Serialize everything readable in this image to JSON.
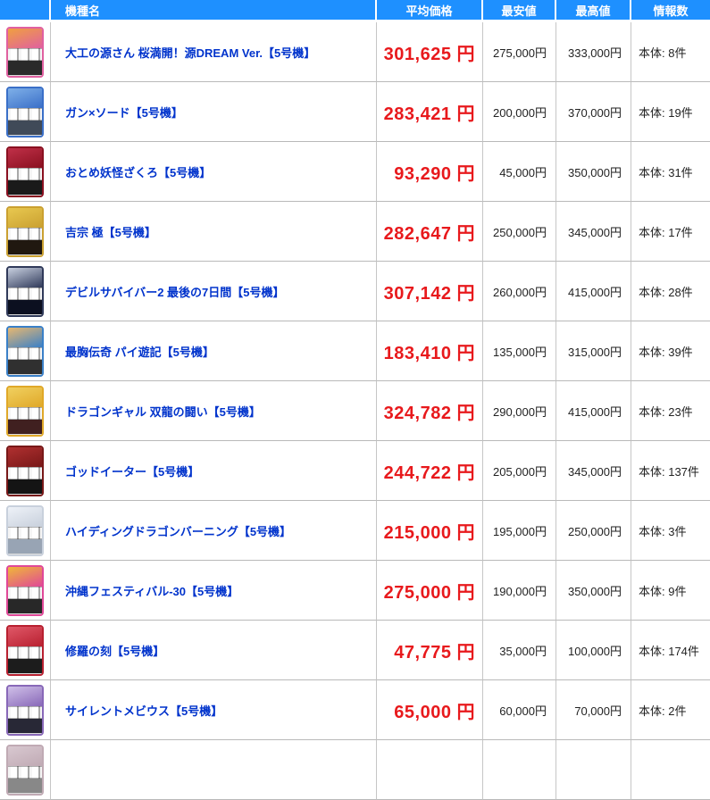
{
  "colors": {
    "header_bg": "#1e90ff",
    "link_blue": "#0033cc",
    "price_red": "#e8191c"
  },
  "table": {
    "columns": [
      {
        "key": "thumb",
        "label": ""
      },
      {
        "key": "name",
        "label": "機種名"
      },
      {
        "key": "avg",
        "label": "平均価格"
      },
      {
        "key": "min",
        "label": "最安値"
      },
      {
        "key": "max",
        "label": "最高値"
      },
      {
        "key": "count",
        "label": "情報数"
      }
    ],
    "rows": [
      {
        "name": "大工の源さん 桜満開！源DREAM Ver.【5号機】",
        "avg": "301,625 円",
        "min": "275,000円",
        "max": "333,000円",
        "count": "本体: 8件",
        "thumb_icon": "slot-machine-photo-pink-orange",
        "thumb": {
          "c1": "#e060a0",
          "c2": "#f0a040",
          "c3": "#2a2a2a"
        }
      },
      {
        "name": "ガン×ソード【5号機】",
        "avg": "283,421 円",
        "min": "200,000円",
        "max": "370,000円",
        "count": "本体: 19件",
        "thumb_icon": "slot-machine-photo-blue",
        "thumb": {
          "c1": "#3a6fc8",
          "c2": "#7fb0e8",
          "c3": "#404a58"
        }
      },
      {
        "name": "おとめ妖怪ざくろ【5号機】",
        "avg": "93,290 円",
        "min": "45,000円",
        "max": "350,000円",
        "count": "本体: 31件",
        "thumb_icon": "slot-machine-photo-darkred",
        "thumb": {
          "c1": "#8a1020",
          "c2": "#c03048",
          "c3": "#1a1a1a"
        }
      },
      {
        "name": "吉宗 極【5号機】",
        "avg": "282,647 円",
        "min": "250,000円",
        "max": "345,000円",
        "count": "本体: 17件",
        "thumb_icon": "slot-machine-photo-gold-black",
        "thumb": {
          "c1": "#caa030",
          "c2": "#e8c850",
          "c3": "#201810"
        }
      },
      {
        "name": "デビルサバイバー2 最後の7日間【5号機】",
        "avg": "307,142 円",
        "min": "260,000円",
        "max": "415,000円",
        "count": "本体: 28件",
        "thumb_icon": "slot-machine-photo-navy",
        "thumb": {
          "c1": "#303a5a",
          "c2": "#c8d0e0",
          "c3": "#0c1020"
        }
      },
      {
        "name": "最胸伝奇 パイ遊記【5号機】",
        "avg": "183,410 円",
        "min": "135,000円",
        "max": "315,000円",
        "count": "本体: 39件",
        "thumb_icon": "slot-machine-photo-blue-tan",
        "thumb": {
          "c1": "#3a80c8",
          "c2": "#e8b870",
          "c3": "#303030"
        }
      },
      {
        "name": "ドラゴンギャル 双龍の闘い【5号機】",
        "avg": "324,782 円",
        "min": "290,000円",
        "max": "415,000円",
        "count": "本体: 23件",
        "thumb_icon": "slot-machine-photo-gold-red",
        "thumb": {
          "c1": "#e0a828",
          "c2": "#f0d060",
          "c3": "#402020"
        }
      },
      {
        "name": "ゴッドイーター【5号機】",
        "avg": "244,722 円",
        "min": "205,000円",
        "max": "345,000円",
        "count": "本体: 137件",
        "thumb_icon": "slot-machine-photo-darkred-black",
        "thumb": {
          "c1": "#781818",
          "c2": "#b03030",
          "c3": "#141414"
        }
      },
      {
        "name": "ハイディングドラゴンバーニング【5号機】",
        "avg": "215,000 円",
        "min": "195,000円",
        "max": "250,000円",
        "count": "本体: 3件",
        "thumb_icon": "slot-machine-photo-white-silver",
        "thumb": {
          "c1": "#c8d0dc",
          "c2": "#eef2f8",
          "c3": "#98a4b4"
        }
      },
      {
        "name": "沖縄フェスティバル-30【5号機】",
        "avg": "275,000 円",
        "min": "190,000円",
        "max": "350,000円",
        "count": "本体: 9件",
        "thumb_icon": "slot-machine-photo-pink-gold",
        "thumb": {
          "c1": "#e04898",
          "c2": "#f0b838",
          "c3": "#282828"
        }
      },
      {
        "name": "修羅の刻【5号機】",
        "avg": "47,775 円",
        "min": "35,000円",
        "max": "100,000円",
        "count": "本体: 174件",
        "thumb_icon": "slot-machine-photo-red",
        "thumb": {
          "c1": "#b82030",
          "c2": "#e05868",
          "c3": "#1c1c1c"
        }
      },
      {
        "name": "サイレントメビウス【5号機】",
        "avg": "65,000 円",
        "min": "60,000円",
        "max": "70,000円",
        "count": "本体: 2件",
        "thumb_icon": "slot-machine-photo-purple",
        "thumb": {
          "c1": "#8868b8",
          "c2": "#d0c0e8",
          "c3": "#282836"
        }
      },
      {
        "name": "",
        "avg": "",
        "min": "",
        "max": "",
        "count": "",
        "thumb_icon": "slot-machine-photo-partial",
        "thumb": {
          "c1": "#c0aab4",
          "c2": "#d8c8d0",
          "c3": "#888888"
        }
      }
    ]
  }
}
